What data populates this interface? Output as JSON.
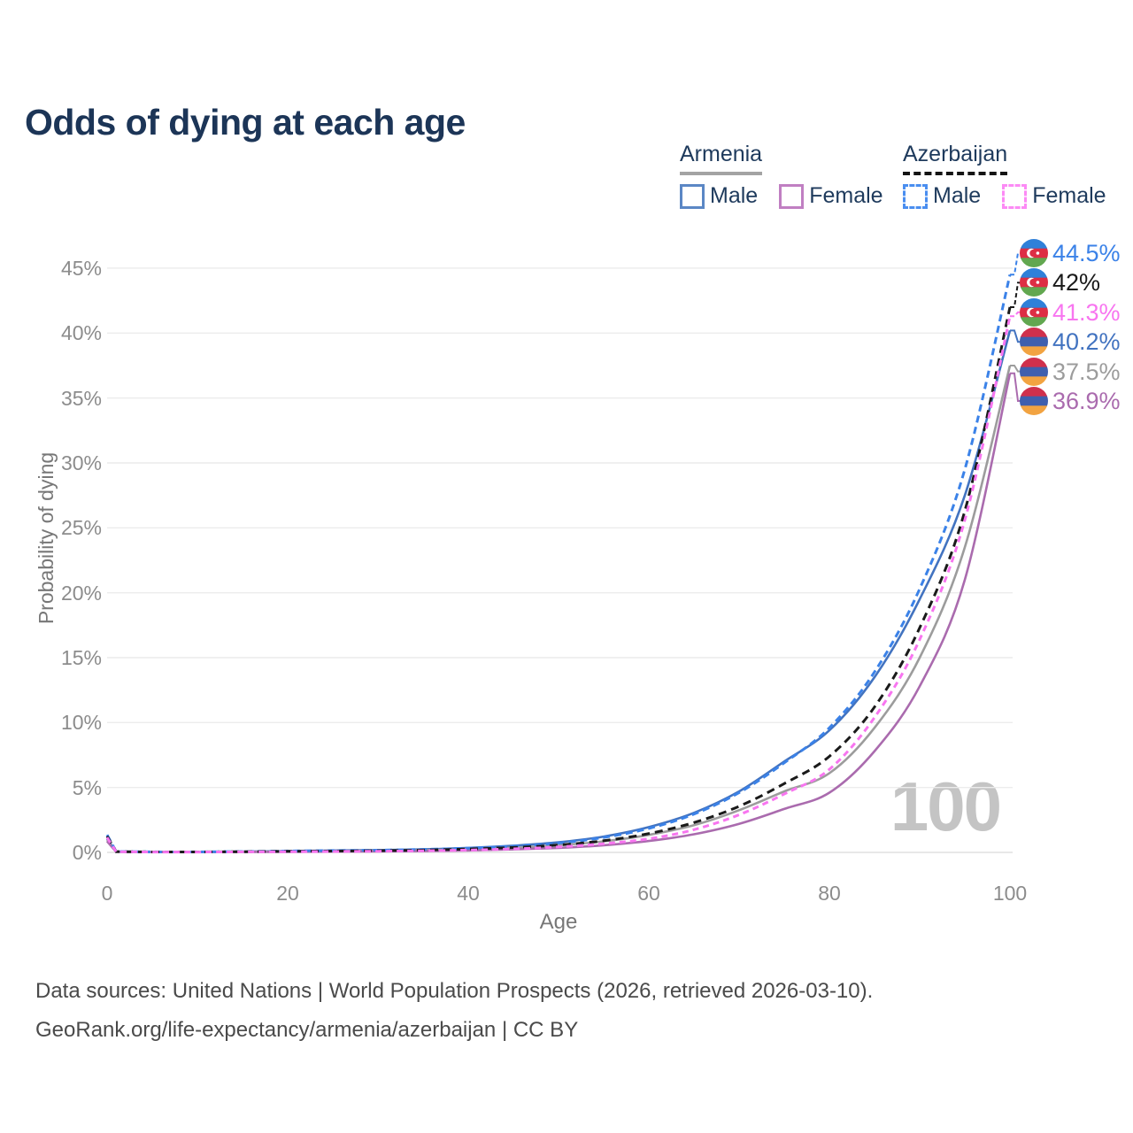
{
  "legend": {
    "groups": [
      {
        "label": "Armenia",
        "line_style": "solid",
        "underline_color": "#a3a3a3",
        "items": [
          {
            "label": "Male",
            "color": "#5b87c5"
          },
          {
            "label": "Female",
            "color": "#c07fc2"
          }
        ]
      },
      {
        "label": "Azerbaijan",
        "line_style": "dashed",
        "underline_color": "#141414",
        "items": [
          {
            "label": "Male",
            "color": "#4a8ef0"
          },
          {
            "label": "Female",
            "color": "#fc8af5"
          }
        ]
      }
    ]
  },
  "chart_data": {
    "type": "line",
    "title": "Odds of dying at each age",
    "xlabel": "Age",
    "ylabel": "Probability of dying",
    "xlim": [
      0,
      100
    ],
    "ylim": [
      0,
      46
    ],
    "x_ticks": [
      0,
      20,
      40,
      60,
      80,
      100
    ],
    "y_tick_values": [
      0,
      5,
      10,
      15,
      20,
      25,
      30,
      35,
      40,
      45
    ],
    "y_tick_labels": [
      "0%",
      "5%",
      "10%",
      "15%",
      "20%",
      "25%",
      "30%",
      "35%",
      "40%",
      "45%"
    ],
    "grid": "horizontal-only",
    "legend_position": "top-right",
    "watermark": "100",
    "ages": [
      0,
      1,
      5,
      10,
      15,
      20,
      25,
      30,
      35,
      40,
      45,
      50,
      55,
      60,
      65,
      70,
      75,
      80,
      85,
      90,
      95,
      100
    ],
    "series": [
      {
        "name": "Armenia Male",
        "country": "armenia",
        "sex": "male",
        "color": "#4273c0",
        "dash": null,
        "end_label": "40.2%",
        "values": [
          1.05,
          0.06,
          0.035,
          0.035,
          0.06,
          0.11,
          0.14,
          0.18,
          0.24,
          0.35,
          0.52,
          0.78,
          1.22,
          1.95,
          3.05,
          4.7,
          7.0,
          9.4,
          13.5,
          19.5,
          27.5,
          40.2
        ]
      },
      {
        "name": "Armenia Both sexes",
        "country": "armenia",
        "sex": "both",
        "color": "#9c9c9c",
        "dash": null,
        "end_label": "37.5%",
        "values": [
          0.95,
          0.05,
          0.03,
          0.03,
          0.05,
          0.07,
          0.09,
          0.12,
          0.16,
          0.24,
          0.36,
          0.55,
          0.85,
          1.35,
          2.1,
          3.25,
          4.7,
          6.1,
          9.6,
          15.0,
          23.5,
          37.5
        ]
      },
      {
        "name": "Armenia Female",
        "country": "armenia",
        "sex": "female",
        "color": "#aa6bae",
        "dash": null,
        "end_label": "36.9%",
        "values": [
          0.85,
          0.045,
          0.025,
          0.025,
          0.035,
          0.045,
          0.06,
          0.08,
          0.1,
          0.15,
          0.23,
          0.35,
          0.55,
          0.88,
          1.4,
          2.2,
          3.35,
          4.6,
          7.8,
          12.8,
          21.0,
          36.9
        ]
      },
      {
        "name": "Azerbaijan Male",
        "country": "azerbaijan",
        "sex": "male",
        "color": "#3b82e8",
        "dash": "8 5",
        "end_label": "44.5%",
        "values": [
          1.35,
          0.07,
          0.04,
          0.04,
          0.07,
          0.11,
          0.14,
          0.17,
          0.23,
          0.33,
          0.48,
          0.72,
          1.15,
          1.85,
          2.95,
          4.6,
          6.9,
          9.6,
          13.9,
          20.3,
          29.5,
          44.5
        ]
      },
      {
        "name": "Azerbaijan Both sexes",
        "country": "azerbaijan",
        "sex": "both",
        "color": "#1a1a1a",
        "dash": "9 6",
        "end_label": "42%",
        "values": [
          1.25,
          0.06,
          0.035,
          0.035,
          0.055,
          0.08,
          0.1,
          0.13,
          0.18,
          0.26,
          0.38,
          0.57,
          0.9,
          1.45,
          2.3,
          3.55,
          5.3,
          7.4,
          11.2,
          17.3,
          26.3,
          42.0
        ]
      },
      {
        "name": "Azerbaijan Female",
        "country": "azerbaijan",
        "sex": "female",
        "color": "#f875f0",
        "dash": "7 5",
        "end_label": "41.3%",
        "values": [
          1.15,
          0.055,
          0.03,
          0.03,
          0.04,
          0.05,
          0.065,
          0.09,
          0.12,
          0.18,
          0.27,
          0.42,
          0.67,
          1.05,
          1.75,
          2.9,
          4.5,
          6.4,
          10.4,
          16.4,
          25.6,
          41.3
        ]
      }
    ]
  },
  "flags": {
    "armenia": {
      "colors": [
        "#d0304c",
        "#3f5fae",
        "#f2a341"
      ],
      "crescent": false
    },
    "azerbaijan": {
      "colors": [
        "#2f80d9",
        "#dd2e44",
        "#62a750"
      ],
      "crescent": true
    }
  },
  "footer": {
    "line1": "Data sources: United Nations | World Population Prospects (2026, retrieved 2026-03-10).",
    "line2": "GeoRank.org/life-expectancy/armenia/azerbaijan | CC BY"
  }
}
